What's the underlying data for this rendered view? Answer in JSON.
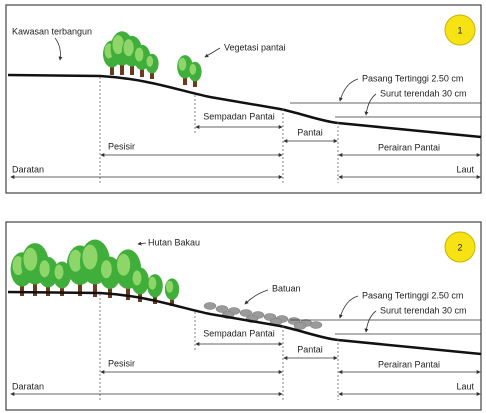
{
  "panels": [
    {
      "number": "1",
      "callouts": [
        "Kawasan terbangun",
        "Vegetasi pantai"
      ],
      "water": [
        "Pasang Tertinggi 2.50 cm",
        "Surut terendah 30 cm"
      ],
      "zones": [
        "Sempadan Pantai",
        "Pantai",
        "Perairan Pantai",
        "Pesisir",
        "Daratan",
        "Laut"
      ]
    },
    {
      "number": "2",
      "callouts": [
        "Hutan Bakau",
        "Batuan"
      ],
      "water": [
        "Pasang Tertinggi 2.50 cm",
        "Surut terendah 30 cm"
      ],
      "zones": [
        "Sempadan Pantai",
        "Pantai",
        "Perairan Pantai",
        "Pesisir",
        "Daratan",
        "Laut"
      ]
    }
  ]
}
